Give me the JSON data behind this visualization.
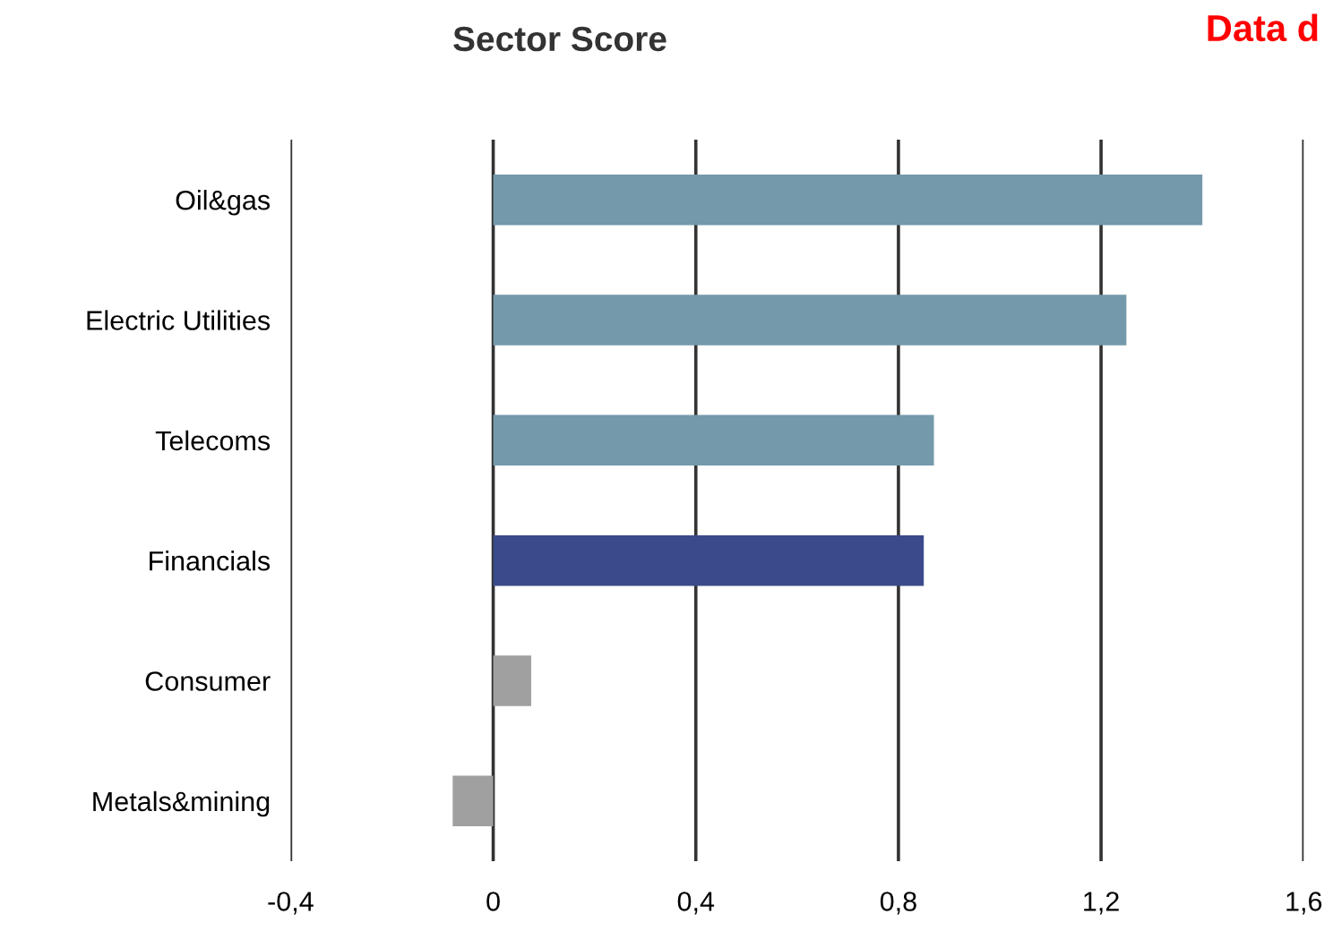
{
  "chart_data": {
    "type": "bar",
    "orientation": "horizontal",
    "title": "Sector Score",
    "categories": [
      "Oil&gas",
      "Electric Utilities",
      "Telecoms",
      "Financials",
      "Consumer",
      "Metals&mining"
    ],
    "values": [
      1.4,
      1.25,
      0.87,
      0.85,
      0.075,
      -0.08
    ],
    "colors": [
      "#7399aa",
      "#7399aa",
      "#7399aa",
      "#3a4a8a",
      "#a0a0a0",
      "#a0a0a0"
    ],
    "xlim": [
      -0.4,
      1.6
    ],
    "xticks": [
      {
        "value": -0.4,
        "label": "-0,4"
      },
      0,
      {
        "value": 0.4,
        "label": "0,4"
      },
      {
        "value": 0.8,
        "label": "0,8"
      },
      {
        "value": 1.2,
        "label": "1,2"
      },
      {
        "value": 1.6,
        "label": "1,6"
      }
    ],
    "grid": "x",
    "annotations": [
      "Data d"
    ]
  }
}
